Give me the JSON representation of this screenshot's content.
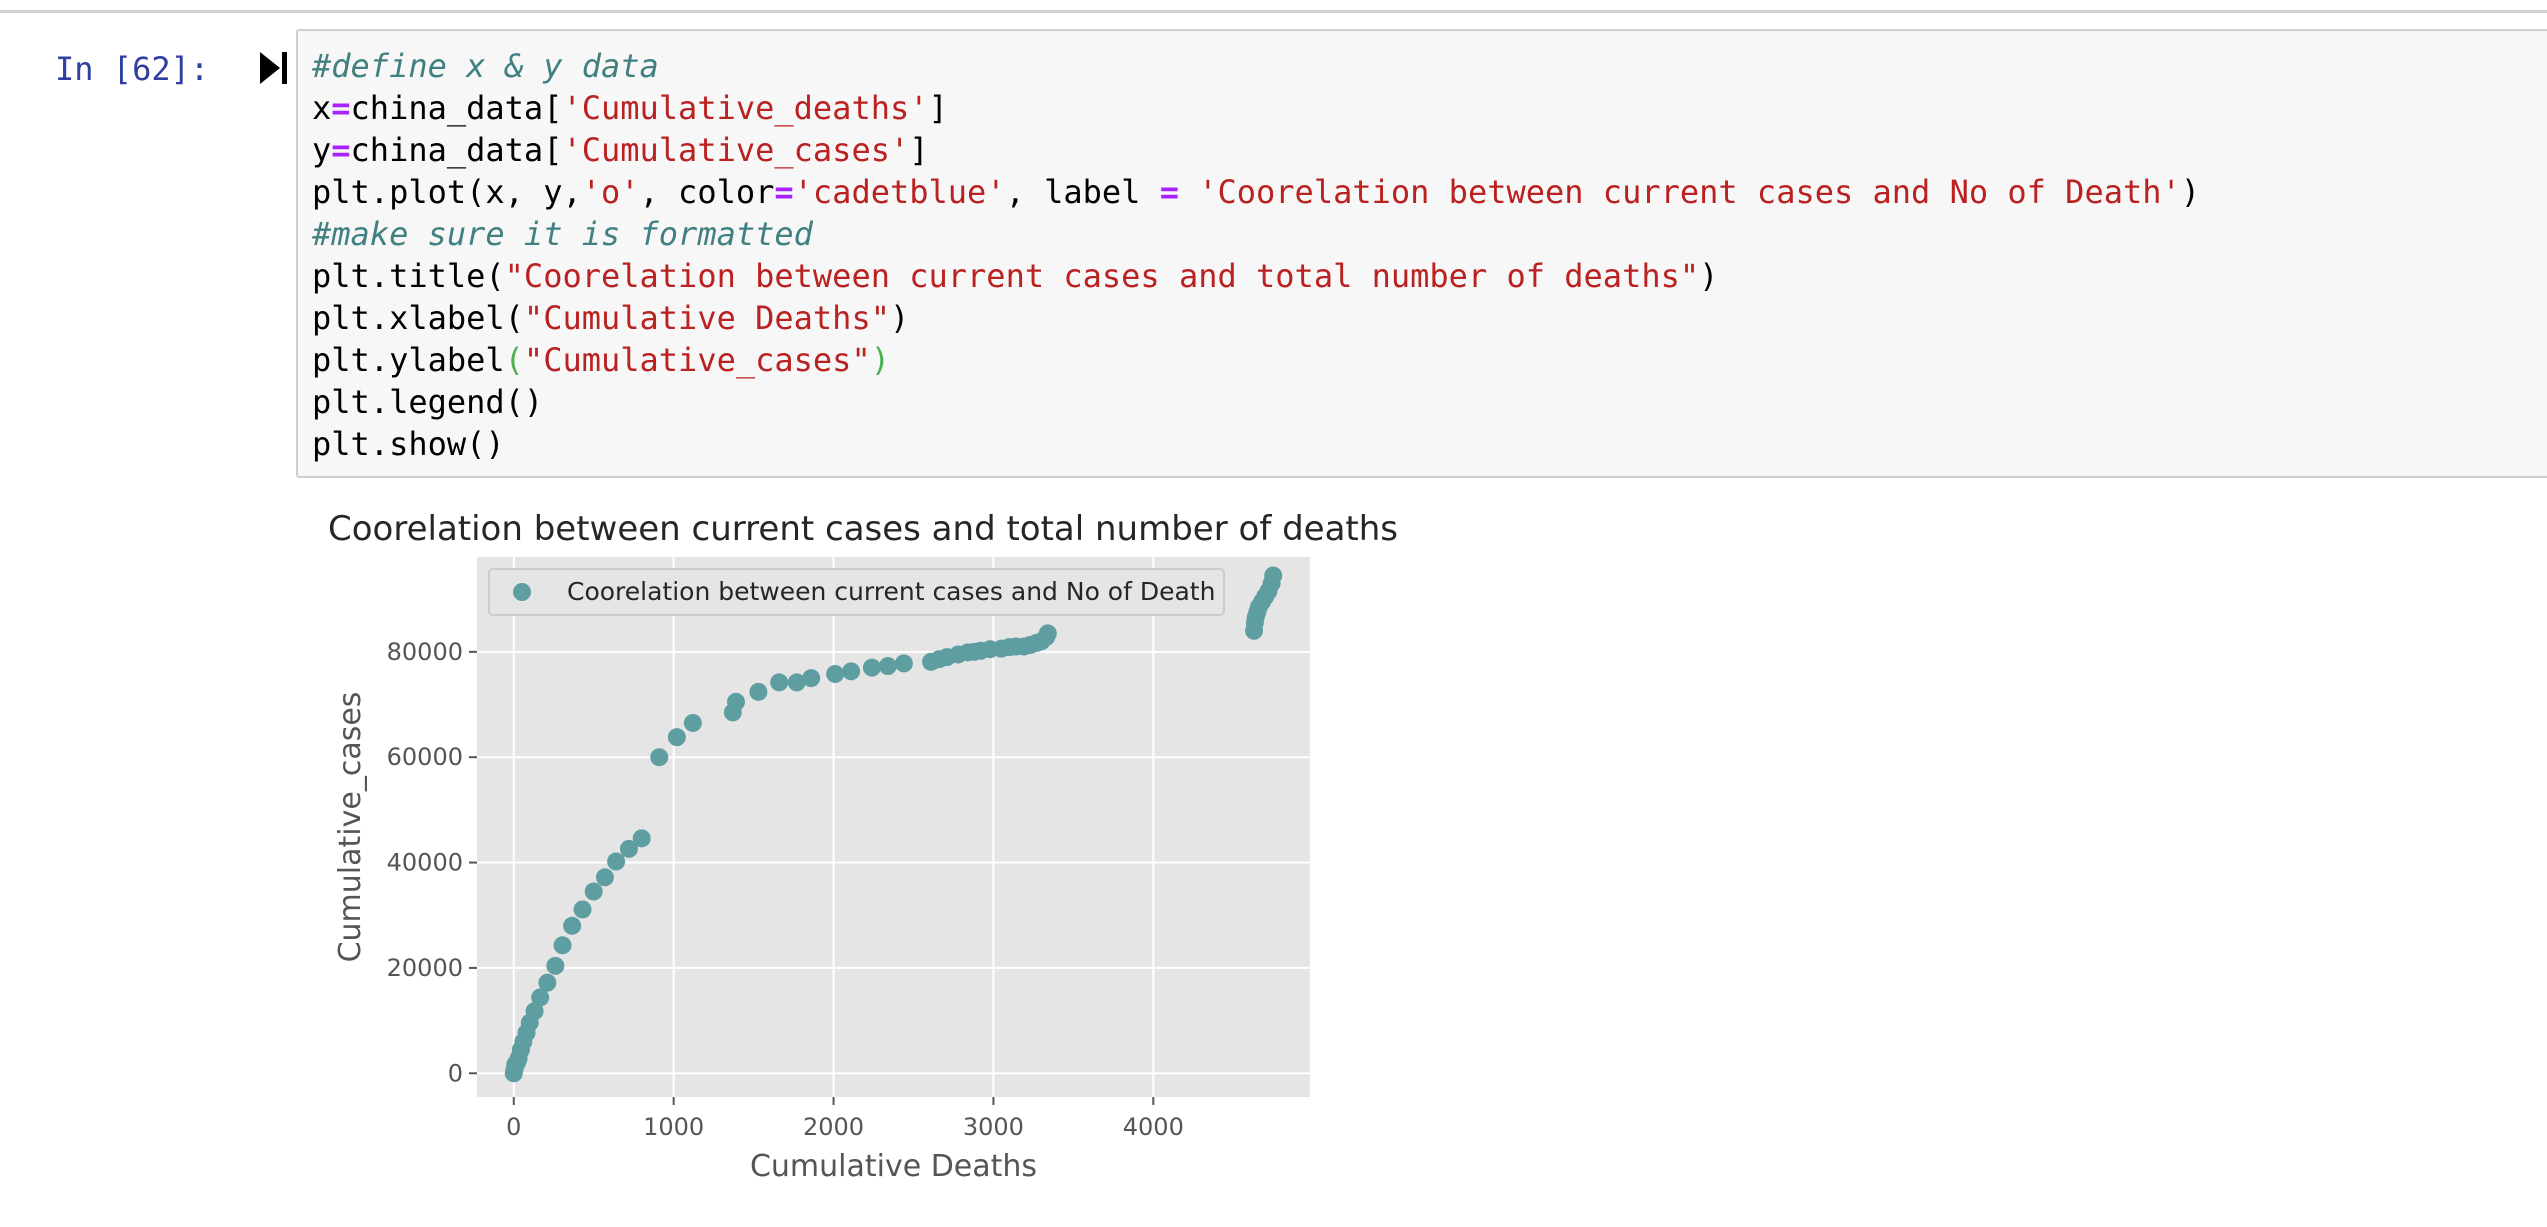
{
  "cell": {
    "prompt": "In [62]:",
    "run_icon": "run-step-icon",
    "lines": [
      [
        {
          "t": "#define x & y data",
          "c": "cm"
        }
      ],
      [
        {
          "t": "x"
        },
        {
          "t": "=",
          "c": "op"
        },
        {
          "t": "china_data["
        },
        {
          "t": "'Cumulative_deaths'",
          "c": "st"
        },
        {
          "t": "]"
        }
      ],
      [
        {
          "t": "y"
        },
        {
          "t": "=",
          "c": "op"
        },
        {
          "t": "china_data["
        },
        {
          "t": "'Cumulative_cases'",
          "c": "st"
        },
        {
          "t": "]"
        }
      ],
      [
        {
          "t": "plt.plot(x, y,"
        },
        {
          "t": "'o'",
          "c": "st"
        },
        {
          "t": ", color"
        },
        {
          "t": "=",
          "c": "op"
        },
        {
          "t": "'cadetblue'",
          "c": "st"
        },
        {
          "t": ", label "
        },
        {
          "t": "=",
          "c": "op"
        },
        {
          "t": " "
        },
        {
          "t": "'Coorelation between current cases and No of Death'",
          "c": "st"
        },
        {
          "t": ")"
        }
      ],
      [
        {
          "t": "#make sure it is formatted",
          "c": "cm"
        }
      ],
      [
        {
          "t": "plt.title("
        },
        {
          "t": "\"Coorelation between current cases and total number of deaths\"",
          "c": "st"
        },
        {
          "t": ")"
        }
      ],
      [
        {
          "t": "plt.xlabel("
        },
        {
          "t": "\"Cumulative Deaths\"",
          "c": "st"
        },
        {
          "t": ")"
        }
      ],
      [
        {
          "t": "plt.ylabel"
        },
        {
          "t": "(",
          "c": "gp"
        },
        {
          "t": "\"Cumulative_cases\"",
          "c": "st"
        },
        {
          "t": ")",
          "c": "gp"
        }
      ],
      [
        {
          "t": "plt.legend()"
        }
      ],
      [
        {
          "t": "plt.show()"
        }
      ]
    ]
  },
  "chart_data": {
    "type": "scatter",
    "title": "Coorelation between current cases and total number of deaths",
    "xlabel": "Cumulative Deaths",
    "ylabel": "Cumulative_cases",
    "xlim": [
      -230,
      4980
    ],
    "ylim": [
      -4500,
      98000
    ],
    "xticks": [
      0,
      1000,
      2000,
      3000,
      4000
    ],
    "yticks": [
      0,
      20000,
      40000,
      60000,
      80000
    ],
    "grid": true,
    "legend_position": "upper-left",
    "series": [
      {
        "name": "Coorelation between current cases and No of Death",
        "color": "#5f9ea0",
        "x": [
          0,
          5,
          10,
          20,
          30,
          45,
          60,
          80,
          100,
          130,
          165,
          210,
          260,
          305,
          365,
          430,
          500,
          570,
          640,
          720,
          800,
          910,
          1020,
          1120,
          1370,
          1390,
          1530,
          1660,
          1770,
          1860,
          2010,
          2110,
          2240,
          2340,
          2440,
          2610,
          2660,
          2710,
          2780,
          2840,
          2880,
          2920,
          2980,
          3050,
          3100,
          3140,
          3190,
          3230,
          3270,
          3300,
          3330,
          3340,
          4630,
          4635,
          4640,
          4650,
          4660,
          4680,
          4700,
          4720,
          4740,
          4750
        ],
        "y": [
          0,
          800,
          1700,
          2000,
          2800,
          4500,
          6000,
          7700,
          9600,
          11800,
          14400,
          17200,
          20400,
          24300,
          28000,
          31100,
          34500,
          37200,
          40200,
          42600,
          44600,
          60000,
          63800,
          66500,
          68500,
          70500,
          72400,
          74200,
          74200,
          75000,
          75800,
          76300,
          77000,
          77300,
          77800,
          78100,
          78600,
          79000,
          79500,
          79900,
          80000,
          80200,
          80500,
          80600,
          80900,
          81000,
          81000,
          81300,
          81700,
          82000,
          82800,
          83500,
          84000,
          85500,
          86500,
          87500,
          88500,
          89500,
          90500,
          91500,
          93000,
          94500
        ]
      }
    ]
  }
}
